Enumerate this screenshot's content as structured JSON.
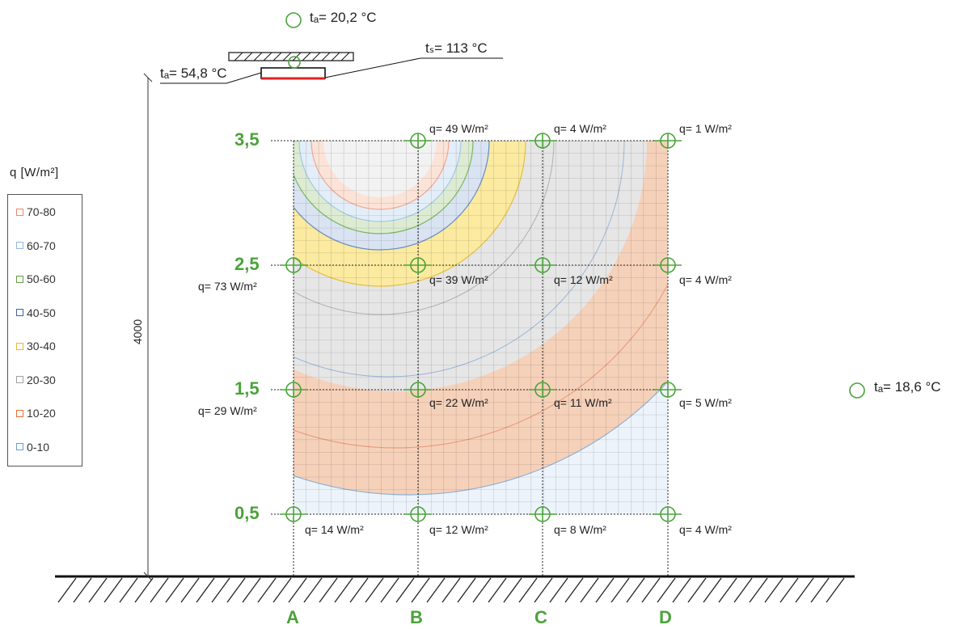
{
  "legend": {
    "title": "q  [W/m²]",
    "items": [
      {
        "label": "70-80",
        "color": "#e8876a"
      },
      {
        "label": "60-70",
        "color": "#8fb8dc"
      },
      {
        "label": "50-60",
        "color": "#5fa040"
      },
      {
        "label": "40-50",
        "color": "#3d63a8"
      },
      {
        "label": "30-40",
        "color": "#e8b830"
      },
      {
        "label": "20-30",
        "color": "#a0a0a0"
      },
      {
        "label": "10-20",
        "color": "#e07038"
      },
      {
        "label": "0-10",
        "color": "#6b9ecf"
      }
    ]
  },
  "temperatures": {
    "ta_top": "tₐ= 20,2 °C",
    "ta_left": "tₐ= 54,8 °C",
    "ts": "tₛ= 113 °C",
    "ta_right": "tₐ= 18,6 °C"
  },
  "dimension": "4000",
  "rows": [
    "3,5",
    "2,5",
    "1,5",
    "0,5"
  ],
  "columns": [
    "A",
    "B",
    "C",
    "D"
  ],
  "q_values": {
    "r35": [
      "49",
      "4",
      "1"
    ],
    "r25": [
      "73",
      "39",
      "12",
      "4"
    ],
    "r15": [
      "29",
      "22",
      "11",
      "5"
    ],
    "r05": [
      "14",
      "12",
      "8",
      "4"
    ]
  },
  "q_unit": "W/m²",
  "q_prefix": "q=",
  "colors": {
    "accent_green": "#4aa33a",
    "heater_red": "#e02020"
  }
}
